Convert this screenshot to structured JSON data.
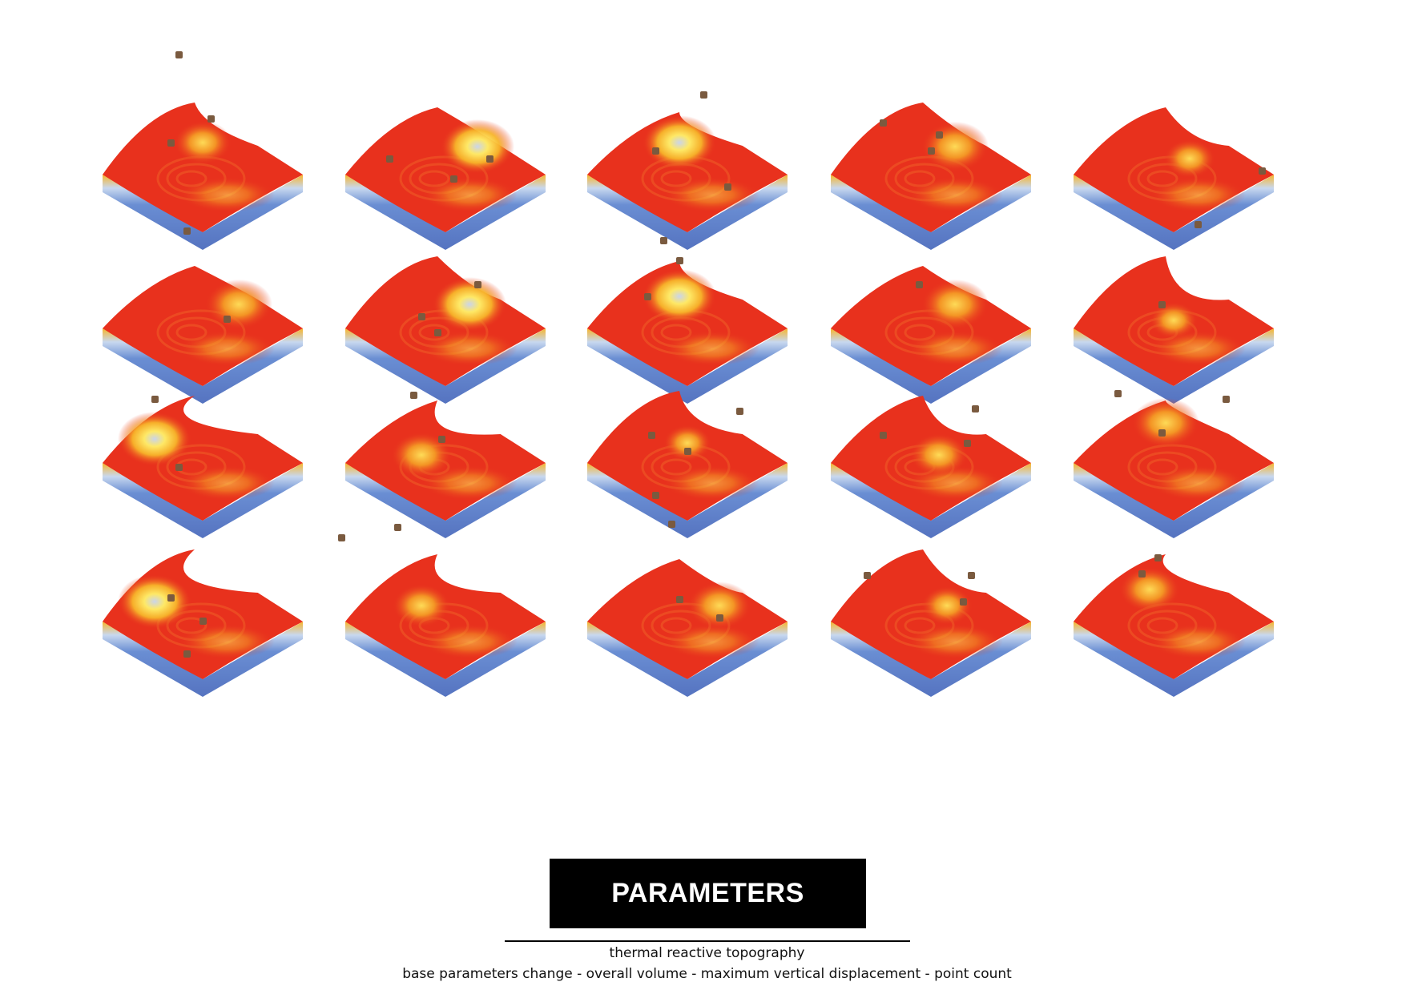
{
  "title": "PARAMETERS",
  "subtitle": "thermal reactive topography",
  "description": "base parameters change - overall volume - maximum vertical displacement - point count",
  "colors": {
    "surface_hot": "#e8311d",
    "surface_warm": "#f4a21d",
    "surface_peak": "#fff26a",
    "surface_cool": "#b9d7f2",
    "base_side": "#5f82c9",
    "point_marker": "#7a5a3f"
  },
  "grid": {
    "rows": 4,
    "columns": 5,
    "tile_count": 20
  }
}
